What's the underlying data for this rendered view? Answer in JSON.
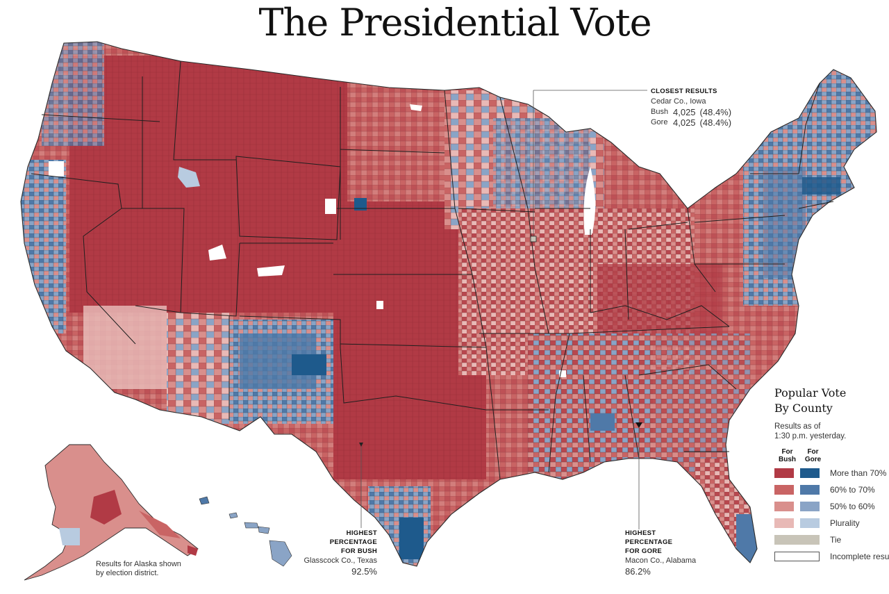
{
  "title": "The Presidential Vote",
  "colors": {
    "bush_70": "#b13a45",
    "bush_60": "#c96464",
    "bush_50": "#d98f8c",
    "bush_plur": "#e8b9b6",
    "gore_70": "#1e5a8c",
    "gore_60": "#4f79a8",
    "gore_50": "#8aa4c6",
    "gore_plur": "#b8cbe0",
    "tie": "#c8c4b8",
    "incomplete": "#ffffff",
    "border": "#2a2a2a"
  },
  "closest": {
    "heading": "CLOSEST RESULTS",
    "county": "Cedar Co., Iowa",
    "bush_label": "Bush",
    "bush_value": "4,025",
    "bush_pct": "(48.4%)",
    "gore_label": "Gore",
    "gore_value": "4,025",
    "gore_pct": "(48.4%)"
  },
  "bush_high": {
    "line1": "HIGHEST",
    "line2": "PERCENTAGE",
    "line3": "FOR BUSH",
    "county": "Glasscock Co., Texas",
    "pct": "92.5%"
  },
  "gore_high": {
    "line1": "HIGHEST",
    "line2": "PERCENTAGE",
    "line3": "FOR GORE",
    "county": "Macon Co., Alabama",
    "pct": "86.2%"
  },
  "alaska_note": {
    "line1": "Results for Alaska shown",
    "line2": "by election district."
  },
  "legend": {
    "title1": "Popular Vote",
    "title2": "By County",
    "sub1": "Results as of",
    "sub2": "1:30 p.m. yesterday.",
    "col_bush1": "For",
    "col_bush2": "Bush",
    "col_gore1": "For",
    "col_gore2": "Gore",
    "rows": [
      "More than 70%",
      "60% to 70%",
      "50% to 60%",
      "Plurality",
      "Tie",
      "Incomplete results"
    ]
  }
}
